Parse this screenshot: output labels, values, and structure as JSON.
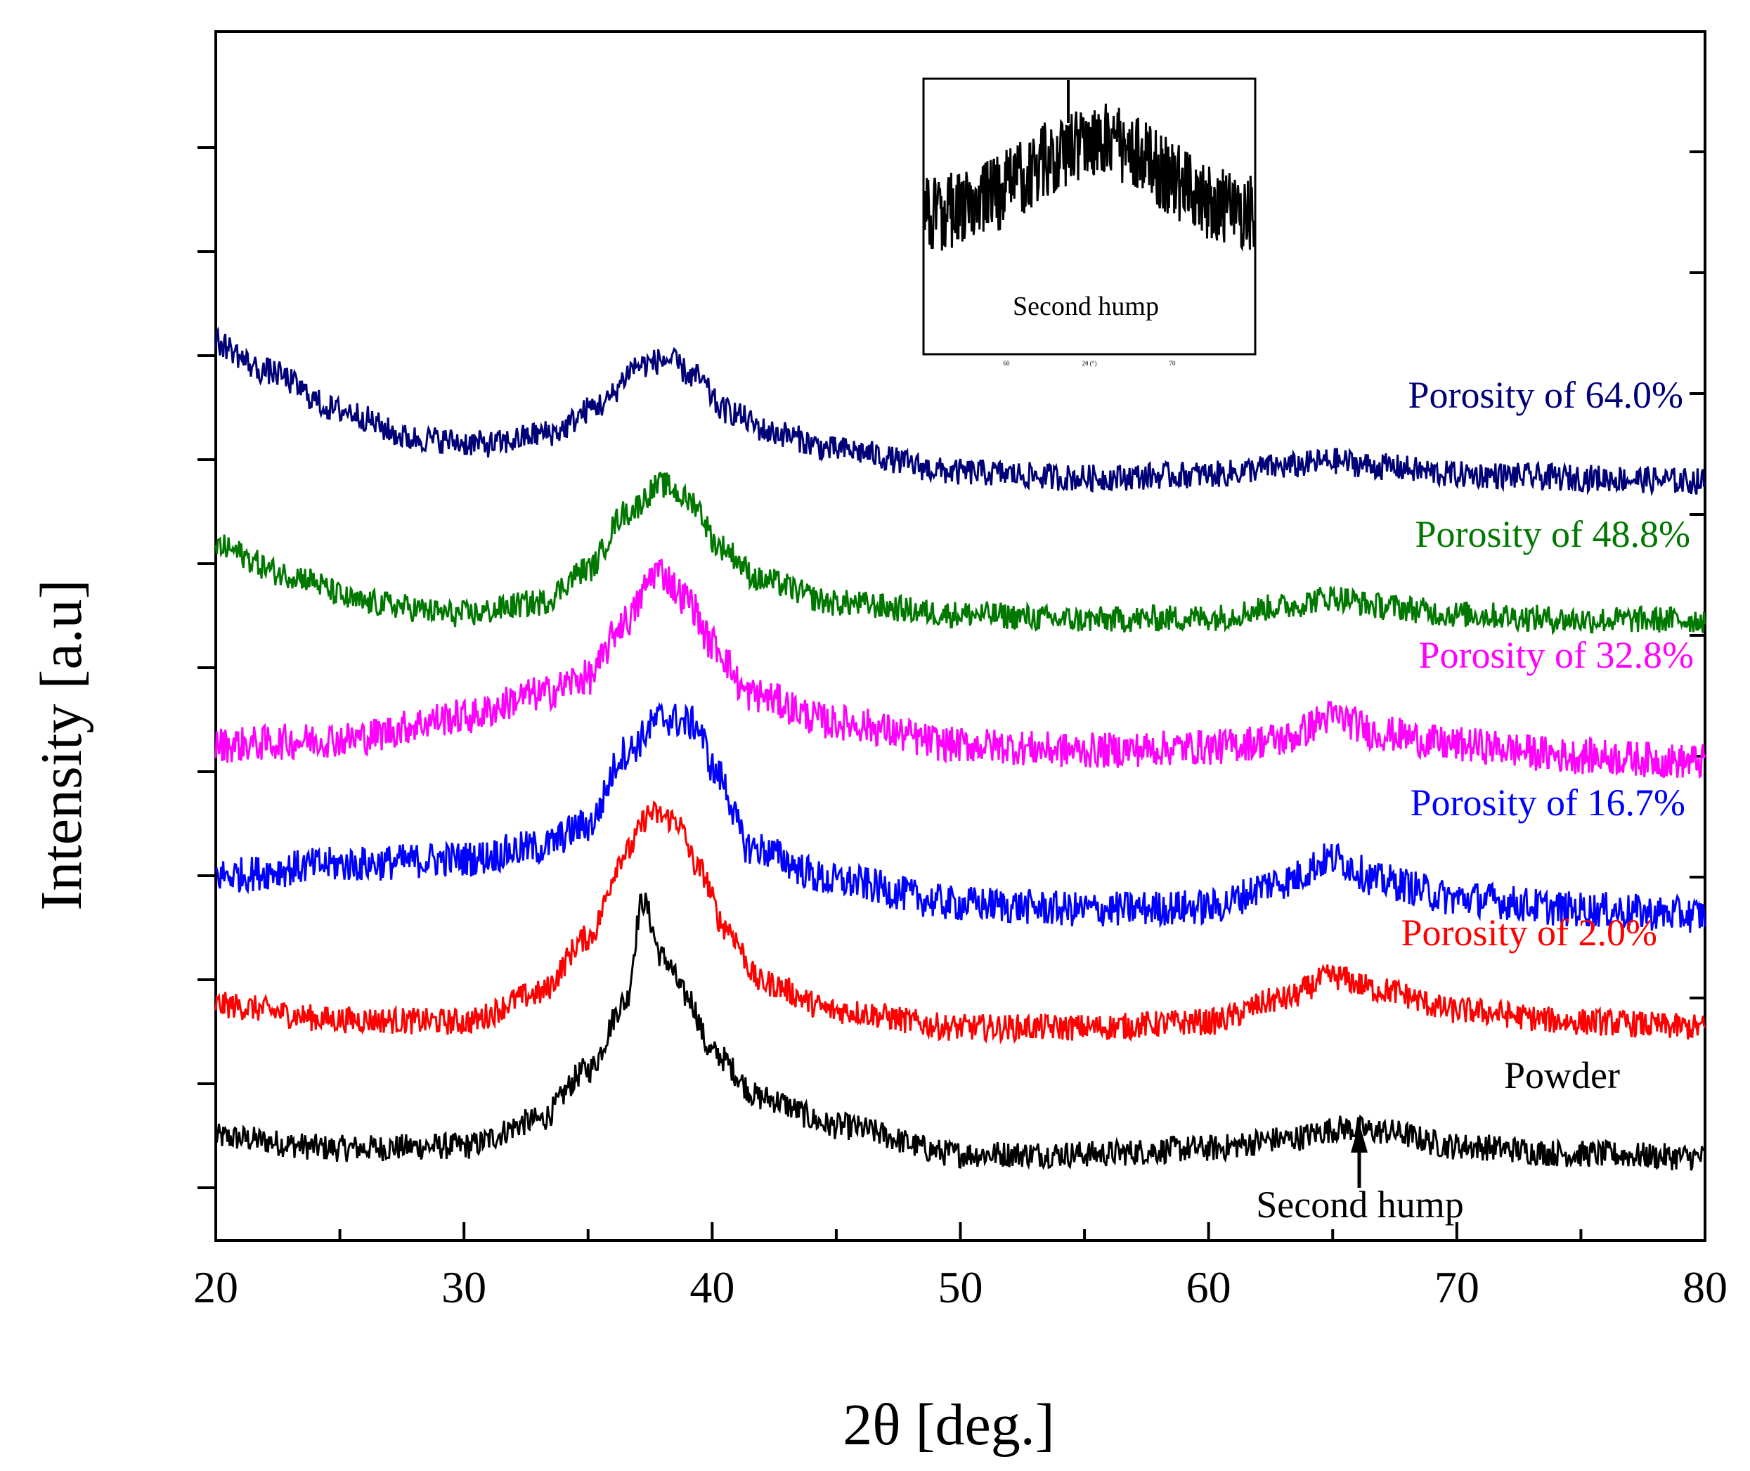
{
  "chart_data": {
    "type": "line",
    "xlabel": "2θ [deg.]",
    "ylabel": "Intensity [a.u]",
    "xlim": [
      20,
      80
    ],
    "x_ticks": [
      20,
      30,
      40,
      50,
      60,
      70,
      80
    ],
    "y_tick_labels_shown": false,
    "legend_placement": "labels next to each curve on the right",
    "series": [
      {
        "name": "Powder",
        "label": "Powder",
        "color": "#000000",
        "offset": 0,
        "points": [
          [
            20,
            1.2
          ],
          [
            25,
            1.1
          ],
          [
            30,
            1.12
          ],
          [
            33,
            1.35
          ],
          [
            35,
            1.8
          ],
          [
            36.5,
            2.4
          ],
          [
            37.2,
            3.3
          ],
          [
            38,
            2.8
          ],
          [
            39,
            2.45
          ],
          [
            40,
            1.95
          ],
          [
            42,
            1.55
          ],
          [
            45,
            1.3
          ],
          [
            50,
            1.05
          ],
          [
            55,
            1.05
          ],
          [
            60,
            1.1
          ],
          [
            63,
            1.18
          ],
          [
            65.5,
            1.28
          ],
          [
            67,
            1.25
          ],
          [
            70,
            1.12
          ],
          [
            75,
            1.05
          ],
          [
            80,
            1.02
          ]
        ]
      },
      {
        "name": "Porosity of 2.0%",
        "label": "Porosity of 2.0%",
        "color": "#ff0000",
        "offset": 1,
        "points": [
          [
            20,
            1.25
          ],
          [
            25,
            1.12
          ],
          [
            30,
            1.1
          ],
          [
            33,
            1.35
          ],
          [
            35,
            1.85
          ],
          [
            36.5,
            2.6
          ],
          [
            37.5,
            2.95
          ],
          [
            38.5,
            2.9
          ],
          [
            39.5,
            2.45
          ],
          [
            40.5,
            1.95
          ],
          [
            42,
            1.45
          ],
          [
            45,
            1.2
          ],
          [
            50,
            1.05
          ],
          [
            55,
            1.05
          ],
          [
            60,
            1.1
          ],
          [
            63,
            1.3
          ],
          [
            65,
            1.5
          ],
          [
            67,
            1.38
          ],
          [
            70,
            1.2
          ],
          [
            75,
            1.1
          ],
          [
            80,
            1.05
          ]
        ]
      },
      {
        "name": "Porosity of 16.7%",
        "label": "Porosity of 16.7%",
        "color": "#0000ff",
        "offset": 2,
        "points": [
          [
            20,
            1.4
          ],
          [
            25,
            1.5
          ],
          [
            30,
            1.55
          ],
          [
            33,
            1.65
          ],
          [
            35,
            1.85
          ],
          [
            36.5,
            2.5
          ],
          [
            38,
            2.8
          ],
          [
            39.3,
            2.75
          ],
          [
            40.2,
            2.3
          ],
          [
            41.5,
            1.65
          ],
          [
            45,
            1.35
          ],
          [
            50,
            1.15
          ],
          [
            55,
            1.1
          ],
          [
            60,
            1.12
          ],
          [
            63,
            1.35
          ],
          [
            65,
            1.55
          ],
          [
            67,
            1.35
          ],
          [
            70,
            1.2
          ],
          [
            75,
            1.1
          ],
          [
            80,
            1.05
          ]
        ]
      },
      {
        "name": "Porosity of 32.8%",
        "label": "Porosity of 32.8%",
        "color": "#ff00ff",
        "offset": 3,
        "points": [
          [
            20,
            1.5
          ],
          [
            25,
            1.55
          ],
          [
            30,
            1.75
          ],
          [
            33,
            1.95
          ],
          [
            35,
            2.1
          ],
          [
            36.5,
            2.6
          ],
          [
            37.8,
            3.05
          ],
          [
            39,
            2.8
          ],
          [
            40,
            2.4
          ],
          [
            41.5,
            1.95
          ],
          [
            45,
            1.7
          ],
          [
            50,
            1.5
          ],
          [
            55,
            1.45
          ],
          [
            60,
            1.48
          ],
          [
            63,
            1.55
          ],
          [
            65,
            1.75
          ],
          [
            67,
            1.6
          ],
          [
            70,
            1.5
          ],
          [
            75,
            1.4
          ],
          [
            80,
            1.35
          ]
        ]
      },
      {
        "name": "Porosity of 48.8%",
        "label": "Porosity of 48.8%",
        "color": "#007800",
        "offset": 4,
        "points": [
          [
            20,
            1.95
          ],
          [
            23,
            1.7
          ],
          [
            26,
            1.45
          ],
          [
            30,
            1.35
          ],
          [
            33,
            1.45
          ],
          [
            35,
            1.75
          ],
          [
            36.5,
            2.25
          ],
          [
            38,
            2.5
          ],
          [
            39.2,
            2.35
          ],
          [
            40.3,
            1.95
          ],
          [
            42,
            1.65
          ],
          [
            45,
            1.45
          ],
          [
            50,
            1.35
          ],
          [
            55,
            1.3
          ],
          [
            60,
            1.32
          ],
          [
            63,
            1.42
          ],
          [
            65,
            1.5
          ],
          [
            67,
            1.42
          ],
          [
            70,
            1.35
          ],
          [
            75,
            1.3
          ],
          [
            80,
            1.3
          ]
        ]
      },
      {
        "name": "Porosity of 64.0%",
        "label": "Porosity of 64.0%",
        "color": "#000078",
        "offset": 5,
        "points": [
          [
            20,
            2.45
          ],
          [
            22,
            2.2
          ],
          [
            25,
            1.85
          ],
          [
            28,
            1.6
          ],
          [
            31,
            1.55
          ],
          [
            33.5,
            1.65
          ],
          [
            35.5,
            1.9
          ],
          [
            37,
            2.25
          ],
          [
            38.2,
            2.3
          ],
          [
            39.3,
            2.15
          ],
          [
            40.5,
            1.85
          ],
          [
            42.5,
            1.65
          ],
          [
            45,
            1.5
          ],
          [
            50,
            1.3
          ],
          [
            55,
            1.25
          ],
          [
            60,
            1.28
          ],
          [
            63,
            1.35
          ],
          [
            65,
            1.4
          ],
          [
            67,
            1.35
          ],
          [
            70,
            1.28
          ],
          [
            75,
            1.25
          ],
          [
            80,
            1.22
          ]
        ]
      }
    ],
    "annotations": [
      {
        "text": "Second hump",
        "x": 66,
        "points_to_series": "Powder"
      }
    ],
    "inset": {
      "label": "Second hump",
      "x_ticks": [
        60,
        70
      ],
      "x_axis_label": "2θ (°)",
      "description_series": "Powder",
      "xlim": [
        55,
        75
      ]
    }
  }
}
